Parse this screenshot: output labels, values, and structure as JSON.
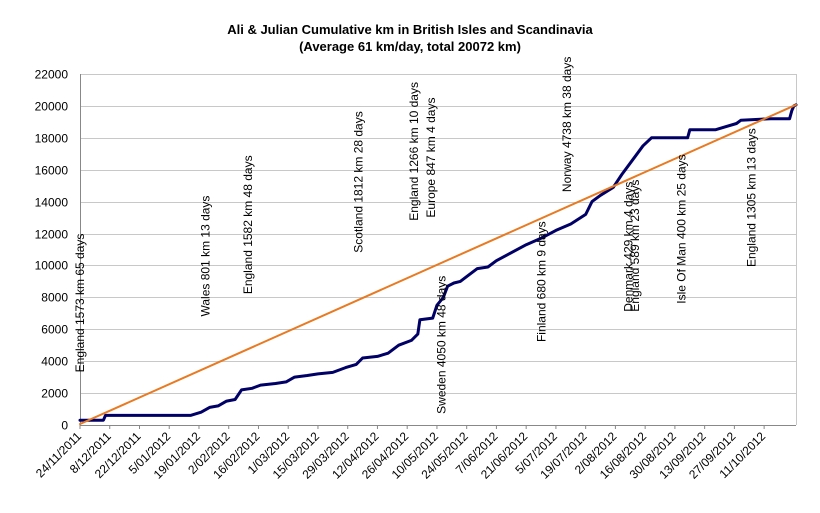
{
  "chart_data": {
    "type": "line",
    "title": "Ali & Julian Cumulative km in British Isles and Scandinavia",
    "subtitle": "(Average 61 km/day, total 20072 km)",
    "xlabel": "",
    "ylabel": "",
    "ylim": [
      0,
      22000
    ],
    "y_ticks": [
      0,
      2000,
      4000,
      6000,
      8000,
      10000,
      12000,
      14000,
      16000,
      18000,
      20000,
      22000
    ],
    "x_range": [
      "2011-11-24",
      "2012-10-26"
    ],
    "x_tick_dates": [
      "2011-11-24",
      "2011-12-08",
      "2011-12-22",
      "2012-01-05",
      "2012-01-19",
      "2012-02-02",
      "2012-02-16",
      "2012-03-01",
      "2012-03-15",
      "2012-03-29",
      "2012-04-12",
      "2012-04-26",
      "2012-05-10",
      "2012-05-24",
      "2012-06-07",
      "2012-06-21",
      "2012-07-05",
      "2012-07-19",
      "2012-08-02",
      "2012-08-16",
      "2012-08-30",
      "2012-09-13",
      "2012-09-27",
      "2012-10-11"
    ],
    "x_tick_labels": [
      "24/11/2011",
      "8/12/2011",
      "22/12/2011",
      "5/01/2012",
      "19/01/2012",
      "2/02/2012",
      "16/02/2012",
      "1/03/2012",
      "15/03/2012",
      "29/03/2012",
      "12/04/2012",
      "26/04/2012",
      "10/05/2012",
      "24/05/2012",
      "7/06/2012",
      "21/06/2012",
      "5/07/2012",
      "19/07/2012",
      "2/08/2012",
      "16/08/2012",
      "30/08/2012",
      "13/09/2012",
      "27/09/2012",
      "11/10/2012"
    ],
    "grid": true,
    "legend": "none",
    "series": [
      {
        "color": "#000066",
        "points": [
          [
            "2011-11-24",
            300
          ],
          [
            "2011-12-05",
            300
          ],
          [
            "2011-12-06",
            600
          ],
          [
            "2012-01-15",
            600
          ],
          [
            "2012-01-20",
            800
          ],
          [
            "2012-01-24",
            1100
          ],
          [
            "2012-01-28",
            1200
          ],
          [
            "2012-02-01",
            1500
          ],
          [
            "2012-02-05",
            1600
          ],
          [
            "2012-02-08",
            2200
          ],
          [
            "2012-02-13",
            2300
          ],
          [
            "2012-02-17",
            2500
          ],
          [
            "2012-02-24",
            2600
          ],
          [
            "2012-02-29",
            2700
          ],
          [
            "2012-03-04",
            3000
          ],
          [
            "2012-03-10",
            3100
          ],
          [
            "2012-03-15",
            3200
          ],
          [
            "2012-03-22",
            3300
          ],
          [
            "2012-03-28",
            3600
          ],
          [
            "2012-04-02",
            3800
          ],
          [
            "2012-04-05",
            4200
          ],
          [
            "2012-04-12",
            4300
          ],
          [
            "2012-04-17",
            4500
          ],
          [
            "2012-04-22",
            5000
          ],
          [
            "2012-04-28",
            5300
          ],
          [
            "2012-05-01",
            5700
          ],
          [
            "2012-05-02",
            6600
          ],
          [
            "2012-05-08",
            6700
          ],
          [
            "2012-05-10",
            7500
          ],
          [
            "2012-05-13",
            8000
          ],
          [
            "2012-05-15",
            8700
          ],
          [
            "2012-05-18",
            8900
          ],
          [
            "2012-05-21",
            9000
          ],
          [
            "2012-05-24",
            9300
          ],
          [
            "2012-05-29",
            9800
          ],
          [
            "2012-06-03",
            9900
          ],
          [
            "2012-06-07",
            10300
          ],
          [
            "2012-06-14",
            10800
          ],
          [
            "2012-06-21",
            11300
          ],
          [
            "2012-06-28",
            11700
          ],
          [
            "2012-07-05",
            12200
          ],
          [
            "2012-07-12",
            12600
          ],
          [
            "2012-07-19",
            13200
          ],
          [
            "2012-07-22",
            14000
          ],
          [
            "2012-07-26",
            14400
          ],
          [
            "2012-08-01",
            14900
          ],
          [
            "2012-08-05",
            15700
          ],
          [
            "2012-08-10",
            16600
          ],
          [
            "2012-08-15",
            17500
          ],
          [
            "2012-08-19",
            18000
          ],
          [
            "2012-08-30",
            18000
          ],
          [
            "2012-09-05",
            18000
          ],
          [
            "2012-09-06",
            18500
          ],
          [
            "2012-09-18",
            18500
          ],
          [
            "2012-09-28",
            18900
          ],
          [
            "2012-09-30",
            19100
          ],
          [
            "2012-10-14",
            19200
          ],
          [
            "2012-10-23",
            19200
          ],
          [
            "2012-10-24",
            19700
          ],
          [
            "2012-10-25",
            20000
          ],
          [
            "2012-10-26",
            20072
          ]
        ]
      },
      {
        "color": "#E87A22",
        "points": [
          [
            "2011-11-24",
            61
          ],
          [
            "2012-10-26",
            20072
          ]
        ]
      }
    ],
    "annotations": [
      {
        "text": "England 1573 km 65 days",
        "date": "2011-11-26",
        "y": 3300
      },
      {
        "text": "Wales 801 km 13 days",
        "date": "2012-01-24",
        "y": 6800
      },
      {
        "text": "England 1582 km 48 days",
        "date": "2012-02-13",
        "y": 8200
      },
      {
        "text": "Scotland 1812 km 28 days",
        "date": "2012-04-05",
        "y": 10800
      },
      {
        "text": "England 1266 km 10 days",
        "date": "2012-05-01",
        "y": 12800
      },
      {
        "text": "Europe 847 km 4 days",
        "date": "2012-05-09",
        "y": 13000
      },
      {
        "text": "Sweden 4050 km 48 days",
        "date": "2012-05-14",
        "y": 700
      },
      {
        "text": "Finland 680 km 9 days",
        "date": "2012-06-30",
        "y": 5200
      },
      {
        "text": "Norway 4738 km 38 days",
        "date": "2012-07-12",
        "y": 14600
      },
      {
        "text": "Denmark 429 km 4 days",
        "date": "2012-08-10",
        "y": 7100
      },
      {
        "text": "England 589 km 23 days",
        "date": "2012-08-13",
        "y": 7100
      },
      {
        "text": "Isle Of Man 400 km 25 days",
        "date": "2012-09-04",
        "y": 7600
      },
      {
        "text": "England 1305 km 13 days",
        "date": "2012-10-07",
        "y": 9900
      }
    ]
  }
}
